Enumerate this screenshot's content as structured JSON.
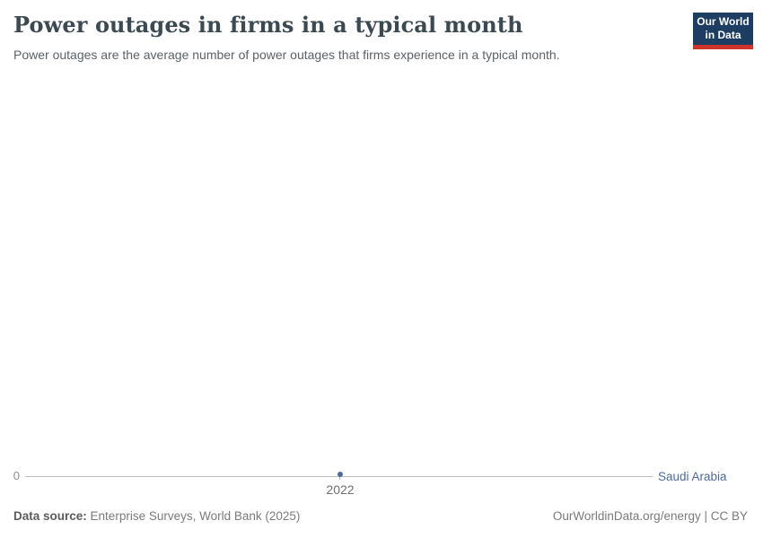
{
  "header": {
    "title": "Power outages in firms in a typical month",
    "subtitle": "Power outages are the average number of power outages that firms experience in a typical month.",
    "logo": {
      "line1": "Our World",
      "line2": "in Data",
      "bg_color": "#1d3d63",
      "stripe_color": "#cf342b"
    }
  },
  "chart_data": {
    "type": "line",
    "title": "Power outages in firms in a typical month",
    "subtitle": "Power outages are the average number of power outages that firms experience in a typical month.",
    "x": [
      2022
    ],
    "series": [
      {
        "name": "Saudi Arabia",
        "values": [
          0
        ],
        "color": "#4c6a9c"
      }
    ],
    "x_tick_labels": [
      "2022"
    ],
    "y_tick_labels": [
      "0"
    ],
    "ylim": [
      0,
      null
    ],
    "grid": false,
    "legend_position": "right-of-line",
    "axis_line_color": "#bcbcbc"
  },
  "axis": {
    "y_zero_label": "0",
    "x_tick_label": "2022"
  },
  "footer": {
    "data_source_label": "Data source:",
    "data_source_value": "Enterprise Surveys, World Bank (2025)",
    "attribution": "OurWorldinData.org/energy | CC BY"
  }
}
